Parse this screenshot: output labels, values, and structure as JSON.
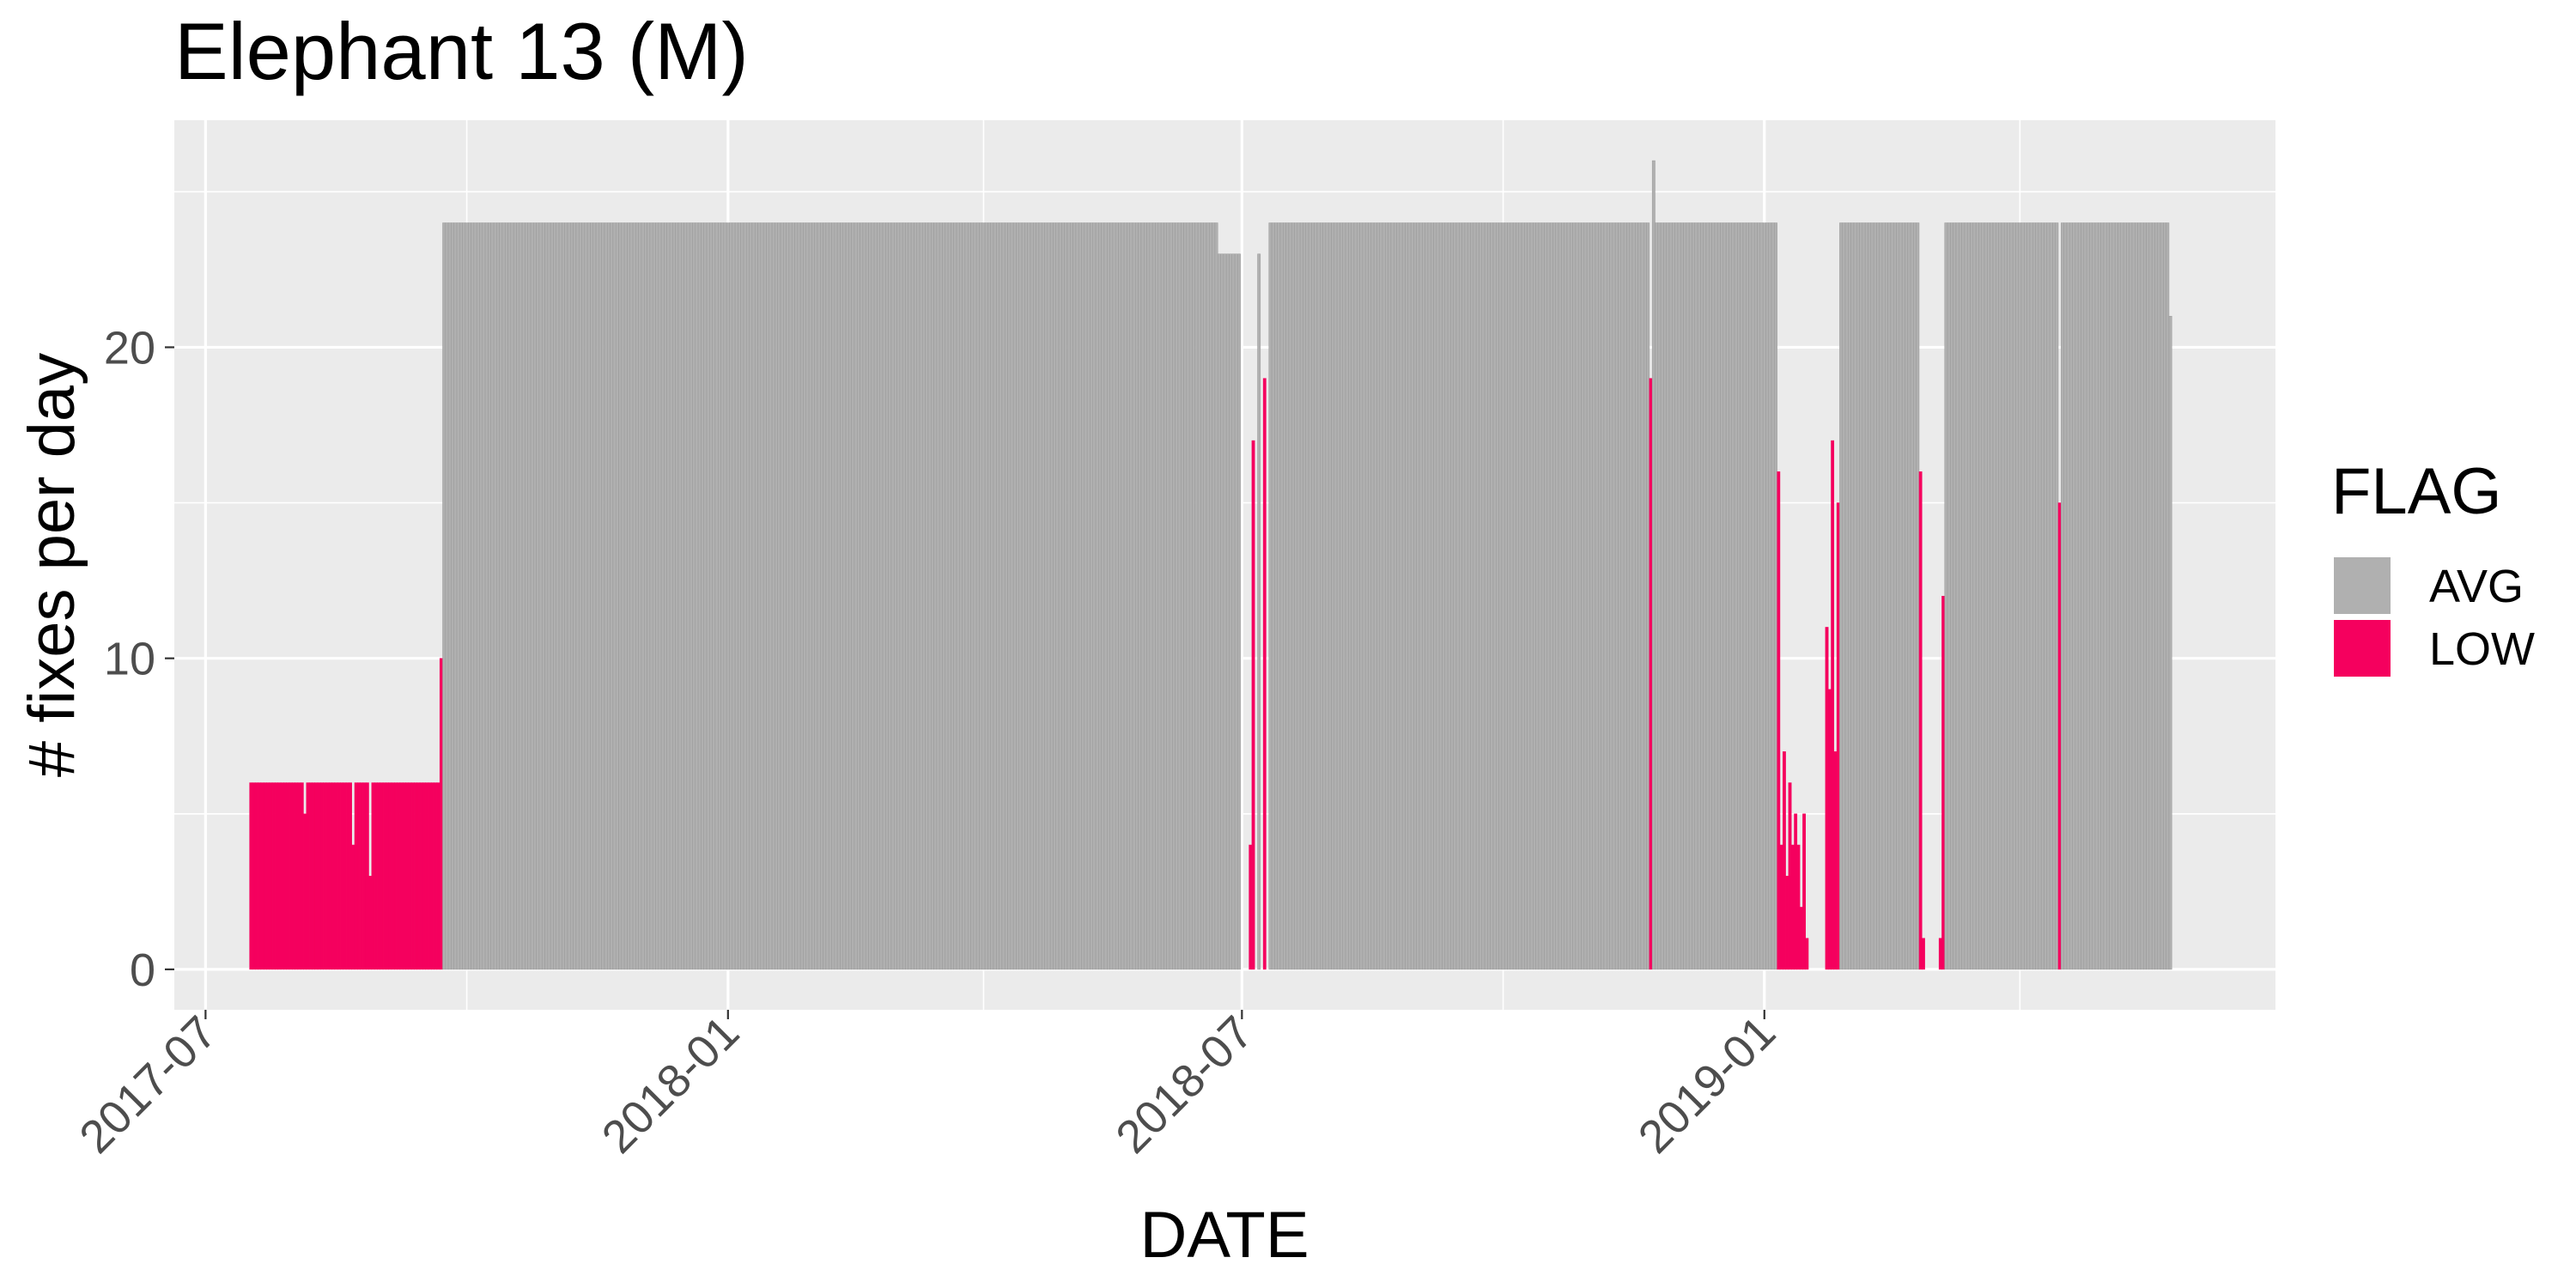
{
  "chart_data": {
    "type": "bar",
    "title": "Elephant 13 (M)",
    "xlabel": "DATE",
    "ylabel": "# fixes per day",
    "x_type": "date",
    "xlim": [
      "2017-06-20",
      "2019-06-30"
    ],
    "ylim": [
      -1.3,
      27.3
    ],
    "y_ticks": [
      0,
      10,
      20
    ],
    "y_tick_labels": [
      "0",
      "10",
      "20"
    ],
    "x_ticks": [
      "2017-07-01",
      "2018-01-01",
      "2018-07-01",
      "2019-01-01"
    ],
    "x_tick_labels": [
      "2017-07",
      "2018-01",
      "2018-07",
      "2019-01"
    ],
    "x_minor_ticks": [
      "2017-10-01",
      "2018-04-01",
      "2018-10-01",
      "2019-04-01"
    ],
    "grid": true,
    "panel_background": "#ebebeb",
    "grid_color": "#ffffff",
    "bar_outline": "#999999",
    "legend": {
      "title": "FLAG",
      "position": "right",
      "entries": [
        {
          "label": "AVG",
          "color": "#b0b0b0"
        },
        {
          "label": "LOW",
          "color": "#f5005e"
        }
      ]
    },
    "segments": [
      {
        "start": "2017-07-17",
        "end": "2017-09-21",
        "flag": "LOW",
        "value": 6
      },
      {
        "start": "2017-08-05",
        "end": "2017-08-05",
        "flag": "LOW",
        "value": 5
      },
      {
        "start": "2017-08-22",
        "end": "2017-08-22",
        "flag": "LOW",
        "value": 4
      },
      {
        "start": "2017-08-28",
        "end": "2017-08-28",
        "flag": "LOW",
        "value": 3
      },
      {
        "start": "2017-09-22",
        "end": "2017-09-22",
        "flag": "LOW",
        "value": 10
      },
      {
        "start": "2017-09-23",
        "end": "2018-06-22",
        "flag": "AVG",
        "value": 24
      },
      {
        "start": "2018-06-23",
        "end": "2018-06-30",
        "flag": "AVG",
        "value": 23
      },
      {
        "start": "2018-07-04",
        "end": "2018-07-04",
        "flag": "LOW",
        "value": 4
      },
      {
        "start": "2018-07-05",
        "end": "2018-07-05",
        "flag": "LOW",
        "value": 17
      },
      {
        "start": "2018-07-07",
        "end": "2018-07-07",
        "flag": "AVG",
        "value": 23
      },
      {
        "start": "2018-07-09",
        "end": "2018-07-09",
        "flag": "LOW",
        "value": 19
      },
      {
        "start": "2018-07-11",
        "end": "2018-11-21",
        "flag": "AVG",
        "value": 24
      },
      {
        "start": "2018-11-22",
        "end": "2018-11-22",
        "flag": "LOW",
        "value": 19
      },
      {
        "start": "2018-11-23",
        "end": "2018-11-23",
        "flag": "AVG",
        "value": 26
      },
      {
        "start": "2018-11-24",
        "end": "2019-01-05",
        "flag": "AVG",
        "value": 24
      },
      {
        "start": "2019-01-06",
        "end": "2019-01-06",
        "flag": "LOW",
        "value": 16
      },
      {
        "start": "2019-01-07",
        "end": "2019-01-07",
        "flag": "LOW",
        "value": 4
      },
      {
        "start": "2019-01-08",
        "end": "2019-01-08",
        "flag": "LOW",
        "value": 7
      },
      {
        "start": "2019-01-09",
        "end": "2019-01-09",
        "flag": "LOW",
        "value": 3
      },
      {
        "start": "2019-01-10",
        "end": "2019-01-10",
        "flag": "LOW",
        "value": 6
      },
      {
        "start": "2019-01-11",
        "end": "2019-01-11",
        "flag": "LOW",
        "value": 4
      },
      {
        "start": "2019-01-12",
        "end": "2019-01-12",
        "flag": "LOW",
        "value": 5
      },
      {
        "start": "2019-01-13",
        "end": "2019-01-13",
        "flag": "LOW",
        "value": 4
      },
      {
        "start": "2019-01-14",
        "end": "2019-01-14",
        "flag": "LOW",
        "value": 2
      },
      {
        "start": "2019-01-15",
        "end": "2019-01-15",
        "flag": "LOW",
        "value": 5
      },
      {
        "start": "2019-01-16",
        "end": "2019-01-16",
        "flag": "LOW",
        "value": 1
      },
      {
        "start": "2019-01-23",
        "end": "2019-01-23",
        "flag": "LOW",
        "value": 11
      },
      {
        "start": "2019-01-24",
        "end": "2019-01-24",
        "flag": "LOW",
        "value": 9
      },
      {
        "start": "2019-01-25",
        "end": "2019-01-25",
        "flag": "LOW",
        "value": 17
      },
      {
        "start": "2019-01-26",
        "end": "2019-01-26",
        "flag": "LOW",
        "value": 7
      },
      {
        "start": "2019-01-27",
        "end": "2019-01-27",
        "flag": "LOW",
        "value": 15
      },
      {
        "start": "2019-01-28",
        "end": "2019-02-24",
        "flag": "AVG",
        "value": 24
      },
      {
        "start": "2019-02-25",
        "end": "2019-02-25",
        "flag": "LOW",
        "value": 16
      },
      {
        "start": "2019-02-26",
        "end": "2019-02-26",
        "flag": "LOW",
        "value": 1
      },
      {
        "start": "2019-03-04",
        "end": "2019-03-04",
        "flag": "LOW",
        "value": 1
      },
      {
        "start": "2019-03-05",
        "end": "2019-03-05",
        "flag": "LOW",
        "value": 12
      },
      {
        "start": "2019-03-06",
        "end": "2019-04-14",
        "flag": "AVG",
        "value": 24
      },
      {
        "start": "2019-04-15",
        "end": "2019-04-15",
        "flag": "LOW",
        "value": 15
      },
      {
        "start": "2019-04-16",
        "end": "2019-05-23",
        "flag": "AVG",
        "value": 24
      },
      {
        "start": "2019-05-24",
        "end": "2019-05-24",
        "flag": "AVG",
        "value": 21
      }
    ]
  }
}
